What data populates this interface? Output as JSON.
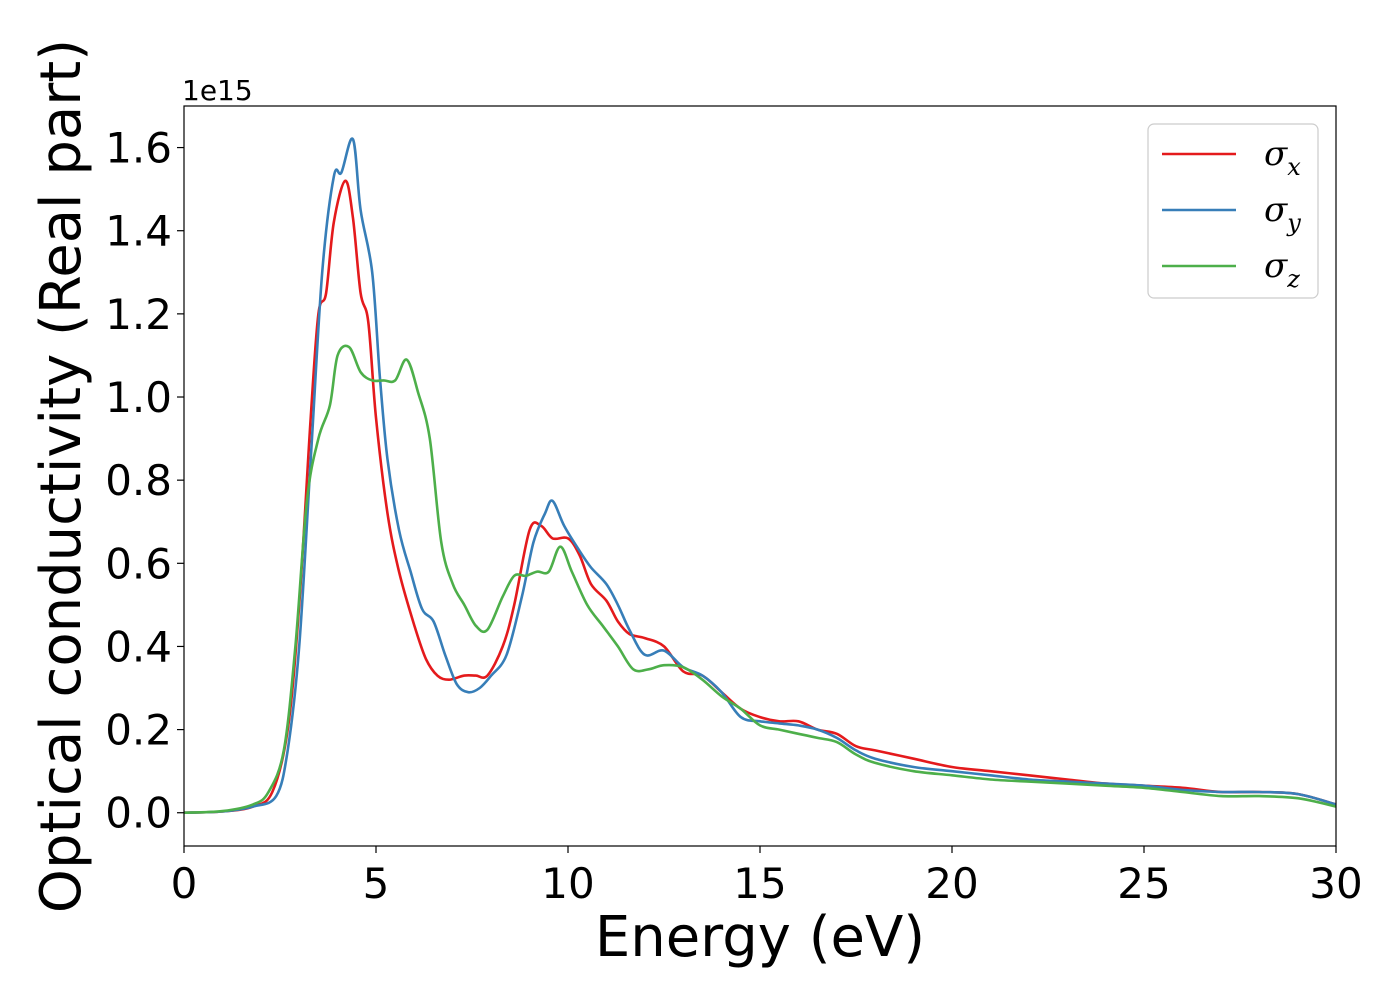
{
  "chart_data": {
    "type": "line",
    "title": "",
    "xlabel": "Energy (eV)",
    "ylabel": "Optical conductivity (Real part)",
    "y_offset_label": "1e15",
    "xlim": [
      0,
      30
    ],
    "ylim": [
      -0.08,
      1.7
    ],
    "x_ticks": [
      0,
      5,
      10,
      15,
      20,
      25,
      30
    ],
    "x_tick_labels": [
      "0",
      "5",
      "10",
      "15",
      "20",
      "25",
      "30"
    ],
    "y_ticks": [
      0.0,
      0.2,
      0.4,
      0.6,
      0.8,
      1.0,
      1.2,
      1.4,
      1.6
    ],
    "y_tick_labels": [
      "0.0",
      "0.2",
      "0.4",
      "0.6",
      "0.8",
      "1.0",
      "1.2",
      "1.4",
      "1.6"
    ],
    "grid": false,
    "legend_position": "top-right",
    "series": [
      {
        "name": "σ",
        "subscript": "x",
        "color": "#e41a1c",
        "points": [
          [
            0,
            0
          ],
          [
            1,
            0.003
          ],
          [
            1.8,
            0.015
          ],
          [
            2.3,
            0.05
          ],
          [
            2.7,
            0.2
          ],
          [
            3.0,
            0.5
          ],
          [
            3.3,
            0.95
          ],
          [
            3.5,
            1.2
          ],
          [
            3.7,
            1.25
          ],
          [
            3.9,
            1.42
          ],
          [
            4.2,
            1.52
          ],
          [
            4.4,
            1.43
          ],
          [
            4.6,
            1.25
          ],
          [
            4.8,
            1.18
          ],
          [
            5.0,
            0.95
          ],
          [
            5.3,
            0.72
          ],
          [
            5.6,
            0.58
          ],
          [
            6.0,
            0.45
          ],
          [
            6.3,
            0.37
          ],
          [
            6.6,
            0.33
          ],
          [
            6.9,
            0.32
          ],
          [
            7.3,
            0.33
          ],
          [
            7.6,
            0.33
          ],
          [
            7.9,
            0.33
          ],
          [
            8.3,
            0.4
          ],
          [
            8.6,
            0.5
          ],
          [
            9.0,
            0.68
          ],
          [
            9.3,
            0.69
          ],
          [
            9.6,
            0.66
          ],
          [
            10.0,
            0.66
          ],
          [
            10.3,
            0.62
          ],
          [
            10.6,
            0.55
          ],
          [
            11.0,
            0.51
          ],
          [
            11.3,
            0.46
          ],
          [
            11.6,
            0.43
          ],
          [
            12.0,
            0.42
          ],
          [
            12.5,
            0.4
          ],
          [
            13.0,
            0.34
          ],
          [
            13.5,
            0.33
          ],
          [
            14.0,
            0.29
          ],
          [
            14.5,
            0.25
          ],
          [
            15.0,
            0.23
          ],
          [
            15.5,
            0.22
          ],
          [
            16.0,
            0.22
          ],
          [
            16.5,
            0.2
          ],
          [
            17.0,
            0.19
          ],
          [
            17.5,
            0.16
          ],
          [
            18.0,
            0.15
          ],
          [
            19.0,
            0.13
          ],
          [
            20.0,
            0.11
          ],
          [
            21.0,
            0.1
          ],
          [
            22.0,
            0.09
          ],
          [
            23.0,
            0.08
          ],
          [
            24.0,
            0.07
          ],
          [
            25.0,
            0.065
          ],
          [
            26.0,
            0.06
          ],
          [
            27.0,
            0.05
          ],
          [
            28.0,
            0.05
          ],
          [
            29.0,
            0.045
          ],
          [
            30.0,
            0.02
          ]
        ]
      },
      {
        "name": "σ",
        "subscript": "y",
        "color": "#377eb8",
        "points": [
          [
            0,
            0
          ],
          [
            1,
            0.003
          ],
          [
            1.8,
            0.015
          ],
          [
            2.4,
            0.04
          ],
          [
            2.7,
            0.15
          ],
          [
            3.0,
            0.4
          ],
          [
            3.3,
            0.85
          ],
          [
            3.6,
            1.3
          ],
          [
            3.9,
            1.53
          ],
          [
            4.1,
            1.54
          ],
          [
            4.4,
            1.62
          ],
          [
            4.6,
            1.45
          ],
          [
            4.9,
            1.3
          ],
          [
            5.1,
            1.05
          ],
          [
            5.3,
            0.85
          ],
          [
            5.6,
            0.68
          ],
          [
            5.9,
            0.58
          ],
          [
            6.2,
            0.49
          ],
          [
            6.5,
            0.46
          ],
          [
            6.8,
            0.38
          ],
          [
            7.1,
            0.31
          ],
          [
            7.4,
            0.29
          ],
          [
            7.7,
            0.3
          ],
          [
            8.0,
            0.33
          ],
          [
            8.4,
            0.38
          ],
          [
            8.8,
            0.52
          ],
          [
            9.1,
            0.65
          ],
          [
            9.4,
            0.72
          ],
          [
            9.6,
            0.75
          ],
          [
            9.9,
            0.69
          ],
          [
            10.3,
            0.63
          ],
          [
            10.6,
            0.59
          ],
          [
            11.0,
            0.55
          ],
          [
            11.3,
            0.5
          ],
          [
            11.6,
            0.44
          ],
          [
            12.0,
            0.38
          ],
          [
            12.5,
            0.39
          ],
          [
            13.0,
            0.35
          ],
          [
            13.5,
            0.33
          ],
          [
            14.0,
            0.29
          ],
          [
            14.5,
            0.23
          ],
          [
            15.0,
            0.22
          ],
          [
            15.5,
            0.215
          ],
          [
            16.0,
            0.21
          ],
          [
            16.5,
            0.2
          ],
          [
            17.0,
            0.18
          ],
          [
            17.5,
            0.15
          ],
          [
            18.0,
            0.13
          ],
          [
            19.0,
            0.11
          ],
          [
            20.0,
            0.1
          ],
          [
            21.0,
            0.09
          ],
          [
            22.0,
            0.08
          ],
          [
            23.0,
            0.075
          ],
          [
            24.0,
            0.07
          ],
          [
            25.0,
            0.065
          ],
          [
            26.0,
            0.055
          ],
          [
            27.0,
            0.05
          ],
          [
            28.0,
            0.05
          ],
          [
            29.0,
            0.045
          ],
          [
            30.0,
            0.02
          ]
        ]
      },
      {
        "name": "σ",
        "subscript": "z",
        "color": "#4daf4a",
        "points": [
          [
            0,
            0
          ],
          [
            1,
            0.004
          ],
          [
            1.8,
            0.02
          ],
          [
            2.2,
            0.05
          ],
          [
            2.6,
            0.15
          ],
          [
            2.9,
            0.4
          ],
          [
            3.2,
            0.75
          ],
          [
            3.5,
            0.9
          ],
          [
            3.8,
            0.98
          ],
          [
            4.0,
            1.1
          ],
          [
            4.3,
            1.12
          ],
          [
            4.6,
            1.06
          ],
          [
            4.9,
            1.04
          ],
          [
            5.2,
            1.04
          ],
          [
            5.5,
            1.04
          ],
          [
            5.8,
            1.09
          ],
          [
            6.1,
            1.01
          ],
          [
            6.4,
            0.9
          ],
          [
            6.7,
            0.65
          ],
          [
            7.0,
            0.55
          ],
          [
            7.3,
            0.5
          ],
          [
            7.6,
            0.45
          ],
          [
            7.9,
            0.44
          ],
          [
            8.3,
            0.52
          ],
          [
            8.6,
            0.57
          ],
          [
            8.9,
            0.57
          ],
          [
            9.2,
            0.58
          ],
          [
            9.5,
            0.58
          ],
          [
            9.8,
            0.64
          ],
          [
            10.1,
            0.58
          ],
          [
            10.5,
            0.5
          ],
          [
            10.9,
            0.45
          ],
          [
            11.3,
            0.4
          ],
          [
            11.7,
            0.345
          ],
          [
            12.1,
            0.345
          ],
          [
            12.5,
            0.355
          ],
          [
            13.0,
            0.35
          ],
          [
            13.5,
            0.32
          ],
          [
            14.0,
            0.28
          ],
          [
            14.5,
            0.25
          ],
          [
            15.0,
            0.21
          ],
          [
            15.5,
            0.2
          ],
          [
            16.0,
            0.19
          ],
          [
            16.5,
            0.18
          ],
          [
            17.0,
            0.17
          ],
          [
            17.5,
            0.14
          ],
          [
            18.0,
            0.12
          ],
          [
            19.0,
            0.1
          ],
          [
            20.0,
            0.09
          ],
          [
            21.0,
            0.08
          ],
          [
            22.0,
            0.075
          ],
          [
            23.0,
            0.07
          ],
          [
            24.0,
            0.065
          ],
          [
            25.0,
            0.06
          ],
          [
            26.0,
            0.05
          ],
          [
            27.0,
            0.04
          ],
          [
            28.0,
            0.04
          ],
          [
            29.0,
            0.035
          ],
          [
            30.0,
            0.015
          ]
        ]
      }
    ]
  }
}
